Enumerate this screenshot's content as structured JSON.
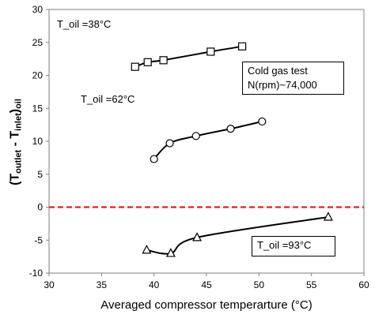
{
  "chart_data": {
    "type": "scatter",
    "title": "",
    "xlabel": "Averaged compressor temperarture (°C)",
    "ylabel": {
      "open": "(T",
      "sub1": "outlet",
      "mid": " - T",
      "sub2": "inlet",
      "close": ")",
      "sub3": "oil"
    },
    "xlim": [
      30,
      60
    ],
    "ylim": [
      -10,
      30
    ],
    "xticks": [
      "30",
      "35",
      "40",
      "45",
      "50",
      "55",
      "60"
    ],
    "yticks": [
      "-10",
      "-5",
      "0",
      "5",
      "10",
      "15",
      "20",
      "25",
      "30"
    ],
    "grid": false,
    "series": [
      {
        "name": "T_oil =38°C",
        "marker": "square",
        "x": [
          38.2,
          39.4,
          40.9,
          45.4,
          48.4
        ],
        "y": [
          21.3,
          22.0,
          22.3,
          23.6,
          24.4
        ]
      },
      {
        "name": "T_oil =62°C",
        "marker": "circle",
        "x": [
          40.0,
          41.5,
          44.0,
          47.3,
          50.3
        ],
        "y": [
          7.3,
          9.7,
          10.8,
          11.9,
          13.0
        ]
      },
      {
        "name": "T_oil =93°C",
        "marker": "triangle",
        "x": [
          39.3,
          41.6,
          44.1,
          56.6
        ],
        "y": [
          -6.5,
          -7.0,
          -4.6,
          -1.5
        ]
      }
    ],
    "reference_line": {
      "y": 0,
      "color": "#e02020",
      "style": "dashed"
    },
    "annotation": {
      "line1": "Cold gas  test",
      "line2": "N(rpm)~74,000"
    }
  }
}
